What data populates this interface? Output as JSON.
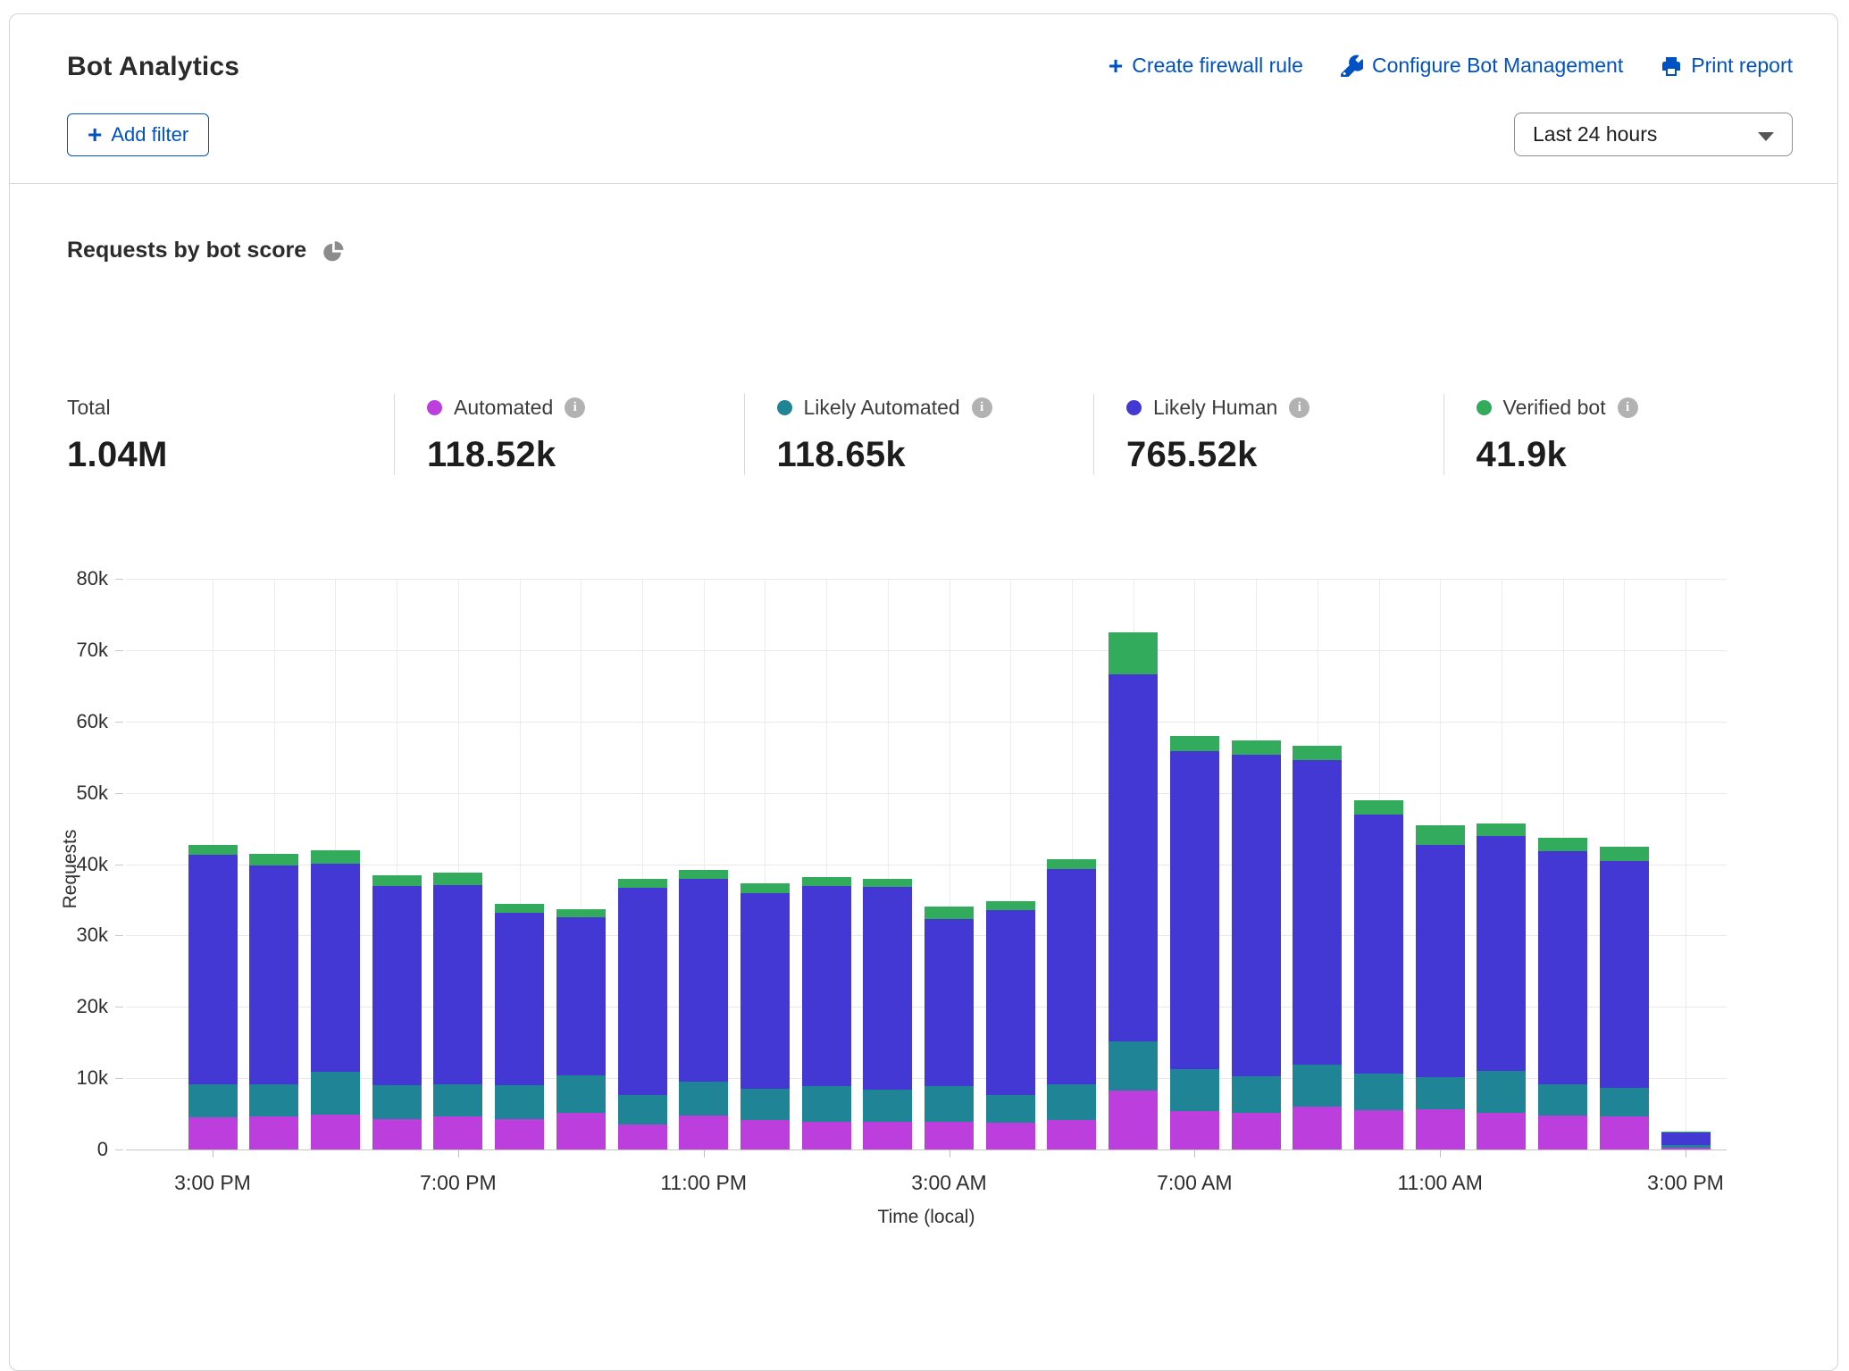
{
  "header": {
    "title": "Bot Analytics",
    "actions": [
      {
        "label": "Create firewall rule",
        "icon": "plus-icon"
      },
      {
        "label": "Configure Bot Management",
        "icon": "wrench-icon"
      },
      {
        "label": "Print report",
        "icon": "printer-icon"
      }
    ]
  },
  "filter_bar": {
    "add_filter_label": "Add filter",
    "time_range_value": "Last 24 hours"
  },
  "section": {
    "title": "Requests by bot score"
  },
  "stats": {
    "total_label": "Total",
    "total_value": "1.04M",
    "items": [
      {
        "label": "Automated",
        "value": "118.52k",
        "color": "#bc3fdd"
      },
      {
        "label": "Likely Automated",
        "value": "118.65k",
        "color": "#1f8496"
      },
      {
        "label": "Likely Human",
        "value": "765.52k",
        "color": "#4338d4"
      },
      {
        "label": "Verified bot",
        "value": "41.9k",
        "color": "#32ab5c"
      }
    ]
  },
  "chart_data": {
    "type": "bar",
    "stacked": true,
    "title": "Requests by bot score",
    "xlabel": "Time (local)",
    "ylabel": "Requests",
    "ylim": [
      0,
      80000
    ],
    "ytick_step": 10000,
    "grid": true,
    "legend_position": "top-stat-cards",
    "x": [
      "3:00 PM",
      "4:00 PM",
      "5:00 PM",
      "6:00 PM",
      "7:00 PM",
      "8:00 PM",
      "9:00 PM",
      "10:00 PM",
      "11:00 PM",
      "12:00 AM",
      "1:00 AM",
      "2:00 AM",
      "3:00 AM",
      "4:00 AM",
      "5:00 AM",
      "6:00 AM",
      "7:00 AM",
      "8:00 AM",
      "9:00 AM",
      "10:00 AM",
      "11:00 AM",
      "12:00 PM",
      "1:00 PM",
      "2:00 PM",
      "3:00 PM"
    ],
    "x_tick_every": 4,
    "series": [
      {
        "name": "Automated",
        "color": "#bc3fdd",
        "values": [
          4500,
          4700,
          4900,
          4300,
          4600,
          4300,
          5200,
          3500,
          4750,
          4100,
          3850,
          3900,
          3850,
          3750,
          4200,
          8300,
          5400,
          5200,
          6050,
          5500,
          5700,
          5100,
          4750,
          4600,
          200
        ]
      },
      {
        "name": "Likely Automated",
        "color": "#1f8496",
        "values": [
          4600,
          4500,
          6000,
          4700,
          4500,
          4700,
          5200,
          4200,
          4750,
          4400,
          5100,
          4550,
          5000,
          3850,
          5000,
          6800,
          5900,
          5100,
          5850,
          5100,
          4400,
          5900,
          4350,
          4050,
          400
        ]
      },
      {
        "name": "Likely Human",
        "color": "#4338d4",
        "values": [
          32200,
          30600,
          29200,
          27900,
          28000,
          24200,
          22100,
          29000,
          28400,
          27400,
          28000,
          28350,
          23450,
          26000,
          30100,
          51500,
          44600,
          45100,
          42700,
          36300,
          32600,
          33000,
          32750,
          31850,
          1800
        ]
      },
      {
        "name": "Verified bot",
        "color": "#32ab5c",
        "values": [
          1400,
          1600,
          1800,
          1500,
          1700,
          1200,
          1200,
          1300,
          1300,
          1400,
          1200,
          1200,
          1800,
          1200,
          1400,
          5900,
          2100,
          1900,
          2000,
          2100,
          2700,
          1700,
          1800,
          2000,
          100
        ]
      }
    ]
  }
}
